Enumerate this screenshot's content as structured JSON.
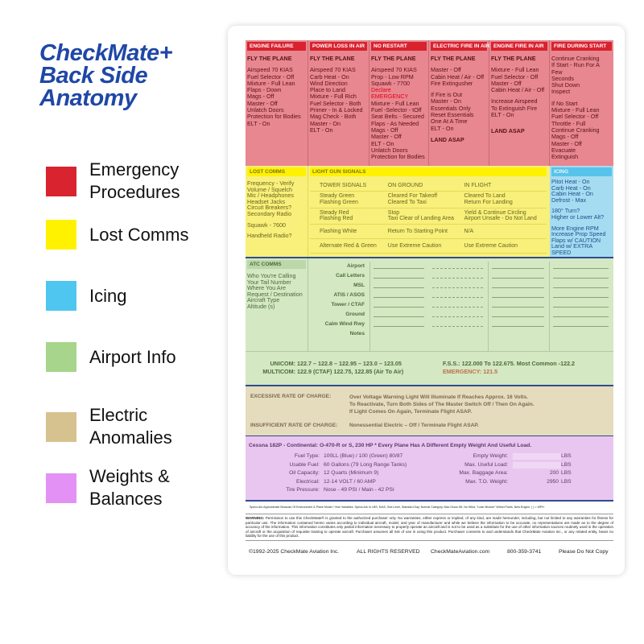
{
  "heading": {
    "line1": "CheckMate+",
    "line2": "Back Side",
    "line3": "Anatomy"
  },
  "legend": [
    {
      "label": "Emergency\nProcedures",
      "color": "#d9232e"
    },
    {
      "label": "Lost Comms",
      "color": "#fff200"
    },
    {
      "label": "Icing",
      "color": "#4ec6f0"
    },
    {
      "label": "Airport Info",
      "color": "#a6d58b"
    },
    {
      "label": "Electric\nAnomalies",
      "color": "#d6c28f"
    },
    {
      "label": "Weights &\nBalances",
      "color": "#e391f5"
    }
  ],
  "emergency": [
    {
      "title": "ENGINE FAILURE",
      "lines": [
        "FLY THE PLANE",
        "",
        "Airspeed 70 KIAS",
        "Fuel  Selector - Off",
        "Mixture - Full Lean",
        "Flaps - Down",
        "Mags - Off",
        "Master - Off",
        "Unlatch Doors",
        "Protection for Bodies",
        "ELT - On"
      ]
    },
    {
      "title": "POWER LOSS IN AIR",
      "lines": [
        "FLY THE PLANE",
        "",
        "Airspeed 70 KIAS",
        "Carb Heat - On",
        "Wind Direction",
        "Place to Land",
        "Mixture - Full Rich",
        "Fuel Selector - Both",
        "Primer - In & Locked",
        "Mag Check - Both",
        "Master - On",
        "ELT - On"
      ]
    },
    {
      "title": "NO RESTART",
      "lines": [
        "FLY THE PLANE",
        "",
        "Airspeed 70 KIAS",
        "Prop - Low RPM",
        "Squawk - 7700",
        "Declare EMERGENCY",
        "Mixture - Full Lean",
        "Fuel -Selector - tOff",
        "Seat Belts - Secured",
        "Flaps - As Needed",
        "Mags - Off",
        "Master - Off",
        "ELT - On",
        "Unlatch Doors",
        "Protection for Bodies"
      ],
      "highlight": "Declare EMERGENCY"
    },
    {
      "title": "ELECTRIC FIRE IN AIR",
      "lines": [
        "FLY THE PLANE",
        "",
        "Master - Off",
        "Cabin Heat / Air - Off",
        "Fire Extingusher",
        "",
        "If Fire is Out",
        "Master - On",
        "Essentials Only",
        "Reset Essentials",
        "   One At A Time",
        "ELT - On",
        "",
        "LAND ASAP"
      ]
    },
    {
      "title": "ENGINE FIRE IN AIR",
      "lines": [
        "FLY THE PLANE",
        "",
        "Mixture - Full Lean",
        "Fuel Selector - Off",
        "Master - Off",
        "Cabin Heat / Air - Off",
        "",
        "Increase Airspeed",
        "   To Extinguish Fire",
        "ELT - On",
        "",
        "",
        "LAND ASAP"
      ]
    },
    {
      "title": "FIRE DURING START",
      "lines": [
        "Continue Cranking",
        "If Start - Run For A Few",
        "          Seconds",
        "Shut Down",
        "Inspect",
        "",
        "If No Start",
        "Mixture - Full Lean",
        "Fuel Selector - Off",
        "Throttle - Full",
        "Continue Cranking",
        "Mags - Off",
        "Master - Off",
        "Evacuate",
        "Extinguish"
      ]
    }
  ],
  "lost_comms": {
    "title": "LOST COMMS",
    "lines": [
      "Frequency - Verify",
      "Volume / Squelch",
      "Mic / Headphones",
      "Headset Jacks",
      "Circuit Breakers?",
      "Secondary Radio",
      "",
      "Squawk - 7600",
      "",
      "Handheld Radio?"
    ]
  },
  "light_gun": {
    "title": "LIGHT GUN SIGNALS",
    "rows": [
      [
        "TOWER SIGNALS",
        "ON GROUND",
        "IN FLIGHT"
      ],
      [
        "Steady Green\nFlashing Green",
        "Cleared For Takeoff\nCleared To Taxi",
        "Cleared To Land\nReturn For Landing"
      ],
      [
        "Steady Red\nFlashing Red",
        "Stop\nTaxi Clear of Landing Area",
        "Yield & Continue Circling\nAirport Unsafe - Do Not Land"
      ],
      [
        "Flashing White",
        "Return To Starting Point",
        "N/A"
      ],
      [
        "Alternate Red & Green",
        "Use Extreme Caution",
        "Use Extreme Caution"
      ]
    ]
  },
  "icing": {
    "title": "ICING",
    "lines": [
      "Pitot Heat - On",
      "Carb Heat - On",
      "Cabin Heat - On",
      "Defrost - Max",
      "",
      "180° Turn?",
      "Higher or Lower Alt?",
      "",
      "More Engine RPM",
      "Increase Prop Speed",
      "Flaps w/ CAUTION",
      "Land w/ EXTRA SPEED"
    ]
  },
  "atc": {
    "title": "ATC COMMS",
    "lines": [
      "Who You're Calling",
      "Your Tail Number",
      "Where You Are",
      "Request / Destination",
      "Aircraft Type",
      "Altitude (s)"
    ],
    "fields": [
      "Airport",
      "Call Letters",
      "MSL",
      "ATIS / ASOS",
      "Tower / CTAF",
      "Ground",
      "Calm Wind Rwy",
      "Notes"
    ]
  },
  "frequencies": {
    "unicom_label": "UNICOM:",
    "unicom": "122.7 – 122.8 – 122.95 – 123.0 – 123.05",
    "multicom_label": "MULTICOM:",
    "multicom": "122.9 (CTAF) 122.75, 122.85 (Air To Air)",
    "fss_label": "F.S.S.:",
    "fss": "122.000 To 122.675. Most Common -122.2",
    "emergency_label": "EMERGENCY:",
    "emergency": "121.5"
  },
  "electric": {
    "excessive_label": "EXCESSIVE RATE OF CHARGE:",
    "excessive": "Over Voltage Warning Light Will Illuminate If Reaches Approx. 16 Volts.\nTo Reactivate, Turn Both Sides of The Master Switch Off / Then On Again.\nIf Light Comes On Again, Terminate Flight ASAP.",
    "insufficient_label": "INSUFFICIENT RATE OF CHARGE:",
    "insufficient": "Nonessential Electric – Off / Terminate Flight ASAP."
  },
  "weights": {
    "aircraft": "Cessna 182P - Continental: O-470-R or S, 230 HP   * Every Plane Has A Different Empty Weight And Useful Load.",
    "specs": [
      [
        "Fuel Type:",
        "100LL (Blue) / 100 (Green) 80/87"
      ],
      [
        "Usable Fuel:",
        "60 Gallons (79 Long Range Tanks)"
      ],
      [
        "Oil Capacity:",
        "12 Quarts (Minimum 9)"
      ],
      [
        "Electrical:",
        "12-14 VOLT / 60 AMP"
      ],
      [
        "Tire Pressure:",
        "Nose - 49 PSI / Main - 42 PSI"
      ]
    ],
    "weights": [
      [
        "Empty Weight:",
        "",
        "LBS"
      ],
      [
        "Max. Useful Load:",
        "",
        "LBS"
      ],
      [
        "Max. Baggage Area:",
        "200",
        "LBS"
      ],
      [
        "Max. T.O. Weight:",
        "2950",
        "LBS"
      ]
    ]
  },
  "specs_note": "Specs Are Approximate Because Of Environment & Plane Model / Year Variables. Specs Are In LBS, KIAS, Sea Level, Standard Day, Normal Category, Max Gross Wt, No Wind, \"Lean Mixture\" Wheel Pants, New Engine. ( ) = MPH.",
  "warning_label": "WARNING:",
  "warning": "Permission to use this CheckMate® is granted to the authorized purchaser only. No warranties, either express or implied, of any kind, are made hereunder, including, but not limited to any warranties for fitness for particular use. The information contained herein varies according to individual aircraft, model, and year of manufacturer and while we believe the information to be accurate, no representations are made as to the degree of accuracy of the information. This information constitutes only partial information necessary to properly operate an aircraft and is not to be used as a substitute for the use of other information sources routinely used in the operation of aircraft or the acquisition of requisite training to operate aircraft. Purchaser assumes all risk of use in using this product. Purchaser consents to and understands that CheckMate Aviation Inc., or any related entity, bears no liability for the use of this product.",
  "footer": {
    "copyright": "©1992-2025 CheckMate Aviation Inc.",
    "rights": "ALL RIGHTS RESERVED",
    "website": "CheckMateAviation.com",
    "phone": "800-359-3741",
    "copy": "Please Do Not Copy"
  }
}
